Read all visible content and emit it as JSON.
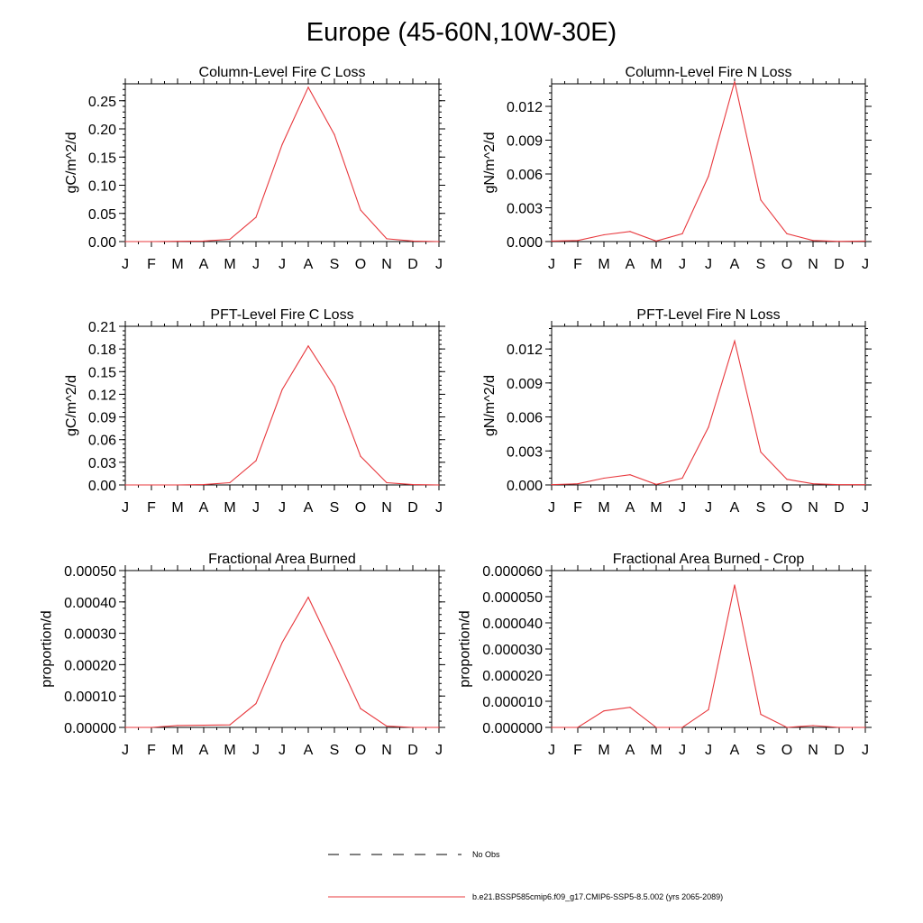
{
  "title": "Europe (45-60N,10W-30E)",
  "legend": {
    "no_obs_label": "No Obs",
    "no_obs_color": "#000000",
    "run_label": "b.e21.BSSP585cmip6.f09_g17.CMIP6-SSP5-8.5.002 (yrs 2065-2089)",
    "run_color": "#e8383d"
  },
  "chart_data": [
    {
      "type": "line",
      "title": "Column-Level Fire C Loss",
      "ylabel": "gC/m^2/d",
      "x": [
        "J",
        "F",
        "M",
        "A",
        "M",
        "J",
        "J",
        "A",
        "S",
        "O",
        "N",
        "D",
        "J"
      ],
      "ylim": [
        0,
        0.28
      ],
      "yticks": [
        "0.00",
        "0.05",
        "0.10",
        "0.15",
        "0.20",
        "0.25"
      ],
      "ytick_values": [
        0,
        0.05,
        0.1,
        0.15,
        0.2,
        0.25
      ],
      "series": [
        {
          "values": [
            0.0,
            0.0,
            0.0005,
            0.001,
            0.004,
            0.043,
            0.172,
            0.274,
            0.19,
            0.056,
            0.005,
            0.001,
            0.0
          ]
        }
      ]
    },
    {
      "type": "line",
      "title": "Column-Level Fire N Loss",
      "ylabel": "gN/m^2/d",
      "x": [
        "J",
        "F",
        "M",
        "A",
        "M",
        "J",
        "J",
        "A",
        "S",
        "O",
        "N",
        "D",
        "J"
      ],
      "ylim": [
        0,
        0.014
      ],
      "yticks": [
        "0.000",
        "0.003",
        "0.006",
        "0.009",
        "0.012"
      ],
      "ytick_values": [
        0,
        0.003,
        0.006,
        0.009,
        0.012
      ],
      "series": [
        {
          "values": [
            5e-05,
            0.0001,
            0.0006,
            0.0009,
            5e-05,
            0.0007,
            0.0058,
            0.0142,
            0.0037,
            0.0007,
            0.0001,
            2e-05,
            5e-05
          ]
        }
      ]
    },
    {
      "type": "line",
      "title": "PFT-Level Fire C Loss",
      "ylabel": "gC/m^2/d",
      "x": [
        "J",
        "F",
        "M",
        "A",
        "M",
        "J",
        "J",
        "A",
        "S",
        "O",
        "N",
        "D",
        "J"
      ],
      "ylim": [
        0,
        0.21
      ],
      "yticks": [
        "0.00",
        "0.03",
        "0.06",
        "0.09",
        "0.12",
        "0.15",
        "0.18",
        "0.21"
      ],
      "ytick_values": [
        0,
        0.03,
        0.06,
        0.09,
        0.12,
        0.15,
        0.18,
        0.21
      ],
      "series": [
        {
          "values": [
            0.0,
            0.0,
            0.0,
            0.0005,
            0.003,
            0.032,
            0.126,
            0.184,
            0.13,
            0.038,
            0.003,
            0.0005,
            0.0
          ]
        }
      ]
    },
    {
      "type": "line",
      "title": "PFT-Level Fire N Loss",
      "ylabel": "gN/m^2/d",
      "x": [
        "J",
        "F",
        "M",
        "A",
        "M",
        "J",
        "J",
        "A",
        "S",
        "O",
        "N",
        "D",
        "J"
      ],
      "ylim": [
        0,
        0.014
      ],
      "yticks": [
        "0.000",
        "0.003",
        "0.006",
        "0.009",
        "0.012"
      ],
      "ytick_values": [
        0,
        0.003,
        0.006,
        0.009,
        0.012
      ],
      "series": [
        {
          "values": [
            2e-05,
            0.0001,
            0.0006,
            0.0009,
            5e-05,
            0.0006,
            0.0051,
            0.0127,
            0.0029,
            0.0005,
            0.0001,
            2e-05,
            2e-05
          ]
        }
      ]
    },
    {
      "type": "line",
      "title": "Fractional Area Burned",
      "ylabel": "proportion/d",
      "x": [
        "J",
        "F",
        "M",
        "A",
        "M",
        "J",
        "J",
        "A",
        "S",
        "O",
        "N",
        "D",
        "J"
      ],
      "ylim": [
        0,
        0.0005
      ],
      "yticks": [
        "0.00000",
        "0.00010",
        "0.00020",
        "0.00030",
        "0.00040",
        "0.00050"
      ],
      "ytick_values": [
        0,
        0.0001,
        0.0002,
        0.0003,
        0.0004,
        0.0005
      ],
      "series": [
        {
          "values": [
            0.0,
            0.0,
            6e-06,
            7e-06,
            8e-06,
            7.6e-05,
            0.00027,
            0.000415,
            0.00024,
            6e-05,
            4e-06,
            0.0,
            0.0
          ]
        }
      ]
    },
    {
      "type": "line",
      "title": "Fractional Area Burned - Crop",
      "ylabel": "proportion/d",
      "x": [
        "J",
        "F",
        "M",
        "A",
        "M",
        "J",
        "J",
        "A",
        "S",
        "O",
        "N",
        "D",
        "J"
      ],
      "ylim": [
        0,
        6e-05
      ],
      "yticks": [
        "0.000000",
        "0.000010",
        "0.000020",
        "0.000030",
        "0.000040",
        "0.000050",
        "0.000060"
      ],
      "ytick_values": [
        0,
        1e-05,
        2e-05,
        3e-05,
        4e-05,
        5e-05,
        6e-05
      ],
      "series": [
        {
          "values": [
            0.0,
            0.0,
            6.3e-06,
            7.7e-06,
            0.0,
            0.0,
            6.8e-06,
            5.45e-05,
            5e-06,
            0.0,
            7e-07,
            0.0,
            0.0
          ]
        }
      ]
    }
  ]
}
